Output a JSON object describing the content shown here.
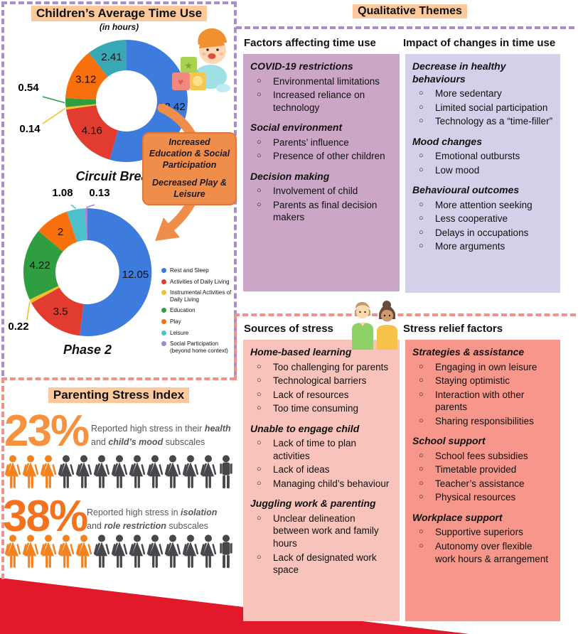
{
  "time_use_panel": {
    "title": "Children’s Average Time Use",
    "subtitle": "(in hours)",
    "callout_line1": "Increased Education & Social Participation",
    "callout_line2": "Decreased Play & Leisure"
  },
  "chart_data": [
    {
      "type": "donut",
      "title": "Circuit Breaker",
      "slices": [
        {
          "label": "Rest and Sleep",
          "value": 12.42,
          "color": "#3d7bdd"
        },
        {
          "label": "Activities of Daily Living",
          "value": 4.16,
          "color": "#e23b30"
        },
        {
          "label": "Instrumental Activities of Daily Living",
          "value": 0.14,
          "color": "#f2c029"
        },
        {
          "label": "Education",
          "value": 0.54,
          "color": "#2f9e41"
        },
        {
          "label": "Play",
          "value": 3.12,
          "color": "#f8700e"
        },
        {
          "label": "Leisure",
          "value": 2.41,
          "color": "#38a9b4"
        }
      ]
    },
    {
      "type": "donut",
      "title": "Phase 2",
      "slices": [
        {
          "label": "Rest and Sleep",
          "value": 12.05,
          "color": "#3d7bdd"
        },
        {
          "label": "Activities of Daily Living",
          "value": 3.5,
          "color": "#e23b30"
        },
        {
          "label": "Instrumental Activities of Daily Living",
          "value": 0.22,
          "color": "#f2c029"
        },
        {
          "label": "Education",
          "value": 4.22,
          "color": "#2f9e41"
        },
        {
          "label": "Play",
          "value": 2,
          "color": "#f8700e"
        },
        {
          "label": "Leisure",
          "value": 1.08,
          "color": "#4cc0cb"
        },
        {
          "label": "Social Participation (beyond home context)",
          "value": 0.13,
          "color": "#a186d5"
        }
      ]
    }
  ],
  "legend": {
    "items": [
      {
        "label": "Rest and Sleep",
        "color": "#3d7bdd"
      },
      {
        "label": "Activities of Daily Living",
        "color": "#e23b30"
      },
      {
        "label": "Instrumental Activities of Daily Living",
        "color": "#f2c029"
      },
      {
        "label": "Education",
        "color": "#2f9e41"
      },
      {
        "label": "Play",
        "color": "#f8700e"
      },
      {
        "label": "Leisure",
        "color": "#4cc0cb"
      },
      {
        "label": "Social Participation (beyond home context)",
        "color": "#a186d5"
      }
    ]
  },
  "qualitative": {
    "title": "Qualitative Themes",
    "columns": [
      {
        "header": "Factors affecting time use",
        "bg": "#cca6c6",
        "groups": [
          {
            "title": "COVID-19 restrictions",
            "items": [
              "Environmental limitations",
              "Increased reliance on technology"
            ]
          },
          {
            "title": "Social environment",
            "items": [
              "Parents’ influence",
              "Presence of other children"
            ]
          },
          {
            "title": "Decision making",
            "items": [
              "Involvement of child",
              "Parents as final decision makers"
            ]
          }
        ]
      },
      {
        "header": "Impact of changes in time use",
        "bg": "#d3d0e9",
        "groups": [
          {
            "title": "Decrease in healthy behaviours",
            "items": [
              "More sedentary",
              "Limited social participation",
              "Technology as a “time-filler”"
            ]
          },
          {
            "title": "Mood changes",
            "items": [
              "Emotional outbursts",
              "Low mood"
            ]
          },
          {
            "title": "Behavioural outcomes",
            "items": [
              "More attention seeking",
              "Less cooperative",
              "Delays in occupations",
              "More arguments"
            ]
          }
        ]
      }
    ]
  },
  "stress_columns": [
    {
      "header": "Sources of stress",
      "bg": "#f8c3ba",
      "groups": [
        {
          "title": "Home-based learning",
          "items": [
            "Too challenging for parents",
            "Technological barriers",
            "Lack of resources",
            "Too time consuming"
          ]
        },
        {
          "title": "Unable to engage child",
          "items": [
            "Lack of time to plan activities",
            "Lack of ideas",
            "Managing child’s behaviour"
          ]
        },
        {
          "title": "Juggling work & parenting",
          "items": [
            "Unclear delineation between work and family hours",
            "Lack of designated work space"
          ]
        }
      ]
    },
    {
      "header": "Stress relief factors",
      "bg": "#f7968a",
      "groups": [
        {
          "title": "Strategies & assistance",
          "items": [
            "Engaging in own leisure",
            "Staying optimistic",
            "Interaction with other parents",
            "Sharing responsibilities"
          ]
        },
        {
          "title": "School support",
          "items": [
            "School fees subsidies",
            "Timetable provided",
            "Teacher’s assistance",
            "Physical resources"
          ]
        },
        {
          "title": "Workplace support",
          "items": [
            "Supportive superiors",
            "Autonomy over flexible work hours & arrangement"
          ]
        }
      ]
    }
  ],
  "stress_index": {
    "title": "Parenting Stress Index",
    "icon_colors": {
      "highlight": "#f58220",
      "dark": "#47474c"
    },
    "stats": [
      {
        "percent": "23%",
        "color": "#f6913d",
        "lines": [
          [
            {
              "t": "Reported high stress in their "
            },
            {
              "t": "health",
              "em": true
            }
          ],
          [
            {
              "t": "and "
            },
            {
              "t": "child’s mood",
              "em": true
            },
            {
              "t": " subscales"
            }
          ]
        ],
        "icons": {
          "highlight_female": 3,
          "dark_female": 9,
          "dark_male": 1
        }
      },
      {
        "percent": "38%",
        "color": "#f4711d",
        "lines": [
          [
            {
              "t": "Reported high stress in "
            },
            {
              "t": "isolation",
              "em": true
            }
          ],
          [
            {
              "t": "and "
            },
            {
              "t": "role restriction",
              "em": true
            },
            {
              "t": " subscales"
            }
          ]
        ],
        "icons": {
          "highlight_female": 5,
          "dark_female": 7,
          "dark_male": 1
        }
      }
    ]
  }
}
